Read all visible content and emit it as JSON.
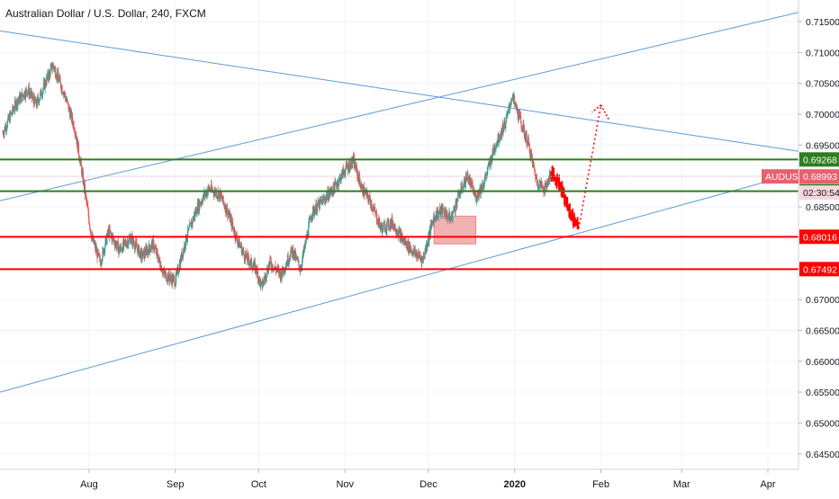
{
  "chart_data": {
    "type": "candlestick",
    "title": "Australian Dollar / U.S. Dollar, 240, FXCM",
    "ylim": [
      0.6425,
      0.7185
    ],
    "xlim": [
      "2019-06-30",
      "2020-04-12"
    ],
    "y_ticks": [
      "0.71500",
      "0.71000",
      "0.70500",
      "0.70000",
      "0.69500",
      "0.69000",
      "0.68500",
      "0.68000",
      "0.67500",
      "0.67000",
      "0.66500",
      "0.66000",
      "0.65500",
      "0.65000",
      "0.64500"
    ],
    "y_tick_values": [
      0.715,
      0.71,
      0.705,
      0.7,
      0.695,
      0.69,
      0.685,
      0.68,
      0.675,
      0.67,
      0.665,
      0.66,
      0.655,
      0.65,
      0.645
    ],
    "x_ticks": [
      {
        "label": "Aug",
        "date": "2019-08-01"
      },
      {
        "label": "Sep",
        "date": "2019-09-01"
      },
      {
        "label": "Oct",
        "date": "2019-10-01"
      },
      {
        "label": "Nov",
        "date": "2019-11-01"
      },
      {
        "label": "Dec",
        "date": "2019-12-01"
      },
      {
        "label": "2020",
        "date": "2020-01-01",
        "bold": true
      },
      {
        "label": "Feb",
        "date": "2020-02-01"
      },
      {
        "label": "Mar",
        "date": "2020-03-01"
      },
      {
        "label": "Apr",
        "date": "2020-04-01"
      }
    ],
    "price_path": [
      [
        "2019-07-01",
        0.697
      ],
      [
        "2019-07-06",
        0.702
      ],
      [
        "2019-07-10",
        0.704
      ],
      [
        "2019-07-13",
        0.7015
      ],
      [
        "2019-07-19",
        0.708
      ],
      [
        "2019-07-23",
        0.7035
      ],
      [
        "2019-07-27",
        0.6975
      ],
      [
        "2019-07-30",
        0.689
      ],
      [
        "2019-08-02",
        0.68
      ],
      [
        "2019-08-05",
        0.676
      ],
      [
        "2019-08-08",
        0.681
      ],
      [
        "2019-08-12",
        0.678
      ],
      [
        "2019-08-16",
        0.68
      ],
      [
        "2019-08-20",
        0.677
      ],
      [
        "2019-08-24",
        0.679
      ],
      [
        "2019-08-28",
        0.674
      ],
      [
        "2019-09-01",
        0.673
      ],
      [
        "2019-09-05",
        0.68
      ],
      [
        "2019-09-09",
        0.685
      ],
      [
        "2019-09-13",
        0.688
      ],
      [
        "2019-09-17",
        0.687
      ],
      [
        "2019-09-20",
        0.684
      ],
      [
        "2019-09-23",
        0.68
      ],
      [
        "2019-09-26",
        0.677
      ],
      [
        "2019-09-30",
        0.675
      ],
      [
        "2019-10-02",
        0.672
      ],
      [
        "2019-10-05",
        0.676
      ],
      [
        "2019-10-09",
        0.674
      ],
      [
        "2019-10-13",
        0.678
      ],
      [
        "2019-10-16",
        0.675
      ],
      [
        "2019-10-20",
        0.684
      ],
      [
        "2019-10-24",
        0.686
      ],
      [
        "2019-10-28",
        0.688
      ],
      [
        "2019-11-01",
        0.691
      ],
      [
        "2019-11-04",
        0.6925
      ],
      [
        "2019-11-07",
        0.688
      ],
      [
        "2019-11-10",
        0.686
      ],
      [
        "2019-11-14",
        0.6815
      ],
      [
        "2019-11-18",
        0.6825
      ],
      [
        "2019-11-22",
        0.6795
      ],
      [
        "2019-11-26",
        0.6775
      ],
      [
        "2019-11-29",
        0.6765
      ],
      [
        "2019-12-03",
        0.6835
      ],
      [
        "2019-12-06",
        0.6845
      ],
      [
        "2019-12-09",
        0.683
      ],
      [
        "2019-12-12",
        0.687
      ],
      [
        "2019-12-15",
        0.69
      ],
      [
        "2019-12-18",
        0.6865
      ],
      [
        "2019-12-21",
        0.689
      ],
      [
        "2019-12-25",
        0.695
      ],
      [
        "2019-12-29",
        0.699
      ],
      [
        "2019-12-31",
        0.703
      ],
      [
        "2020-01-03",
        0.699
      ],
      [
        "2020-01-06",
        0.695
      ],
      [
        "2020-01-09",
        0.689
      ],
      [
        "2020-01-12",
        0.688
      ],
      [
        "2020-01-14",
        0.6905
      ],
      [
        "2020-01-17",
        0.689
      ],
      [
        "2020-01-20",
        0.685
      ],
      [
        "2020-01-22",
        0.683
      ],
      [
        "2020-01-24",
        0.6815
      ]
    ],
    "last_price": 0.68993,
    "forecast_path": [
      [
        "2020-01-24",
        0.6815
      ],
      [
        "2020-02-01",
        0.7015
      ],
      [
        "2020-02-04",
        0.699
      ]
    ],
    "horizontal_levels": [
      {
        "price": 0.69268,
        "label": "0.69268",
        "color": "#2e7d1f"
      },
      {
        "price": 0.68754,
        "label": "0.68754",
        "color": "#2e7d1f"
      },
      {
        "price": 0.68016,
        "label": "0.68016",
        "color": "#ff0000"
      },
      {
        "price": 0.67492,
        "label": "0.67492",
        "color": "#ff0000"
      }
    ],
    "trend_lines": [
      {
        "from": [
          "2019-06-30",
          0.7135
        ],
        "to": [
          "2020-04-12",
          0.694
        ]
      },
      {
        "from": [
          "2019-06-30",
          0.686
        ],
        "to": [
          "2020-04-12",
          0.7165
        ]
      },
      {
        "from": [
          "2019-06-30",
          0.655
        ],
        "to": [
          "2020-04-12",
          0.6905
        ]
      }
    ],
    "zone": {
      "from": "2019-12-03",
      "to": "2019-12-18",
      "top": 0.6835,
      "bottom": 0.679
    },
    "symbol_label": {
      "text": "AUDUSD",
      "price_label": "0.68993",
      "countdown": "02:30:54"
    },
    "colors": {
      "up": "#26a69a",
      "down": "#ef5350",
      "trend": "#5b9bd5",
      "support": "#2e7d1f",
      "resistance": "#ff0000",
      "axis_text": "#131722"
    }
  }
}
